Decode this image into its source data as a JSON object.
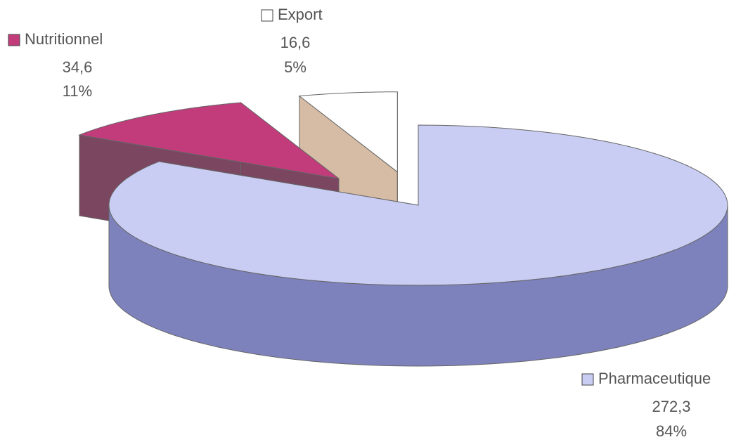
{
  "chart_data": {
    "type": "pie",
    "categories": [
      "Pharmaceutique",
      "Nutritionnel",
      "Export"
    ],
    "values": [
      272.3,
      34.6,
      16.6
    ],
    "value_labels": [
      "272,3",
      "34,6",
      "16,6"
    ],
    "percent_labels": [
      "84%",
      "11%",
      "5%"
    ],
    "colors": [
      "#c9cdf3",
      "#c23c7c",
      "#ffffff"
    ],
    "side_colors": [
      "#7d82bd",
      "#7b4660",
      "#d6bca4"
    ]
  }
}
